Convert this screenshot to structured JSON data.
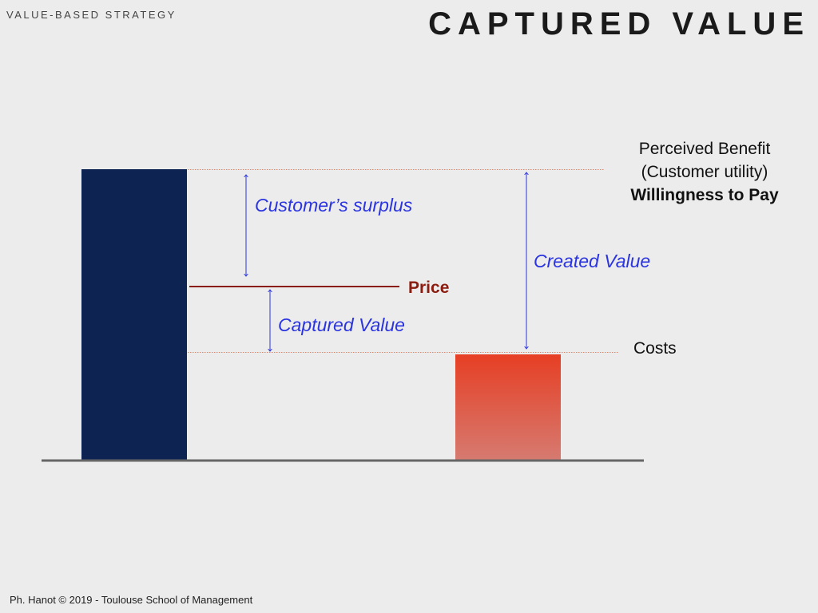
{
  "header": {
    "section": "VALUE-BASED STRATEGY",
    "title": "CAPTURED VALUE"
  },
  "diagram": {
    "benefit_line1": "Perceived Benefit",
    "benefit_line2": "(Customer utility)",
    "benefit_line3": "Willingness to Pay",
    "price_label": "Price",
    "costs_label": "Costs",
    "customer_surplus_label": "Customer’s surplus",
    "captured_value_label": "Captured Value",
    "created_value_label": "Created Value",
    "colors": {
      "benefit_bar": "#0d2352",
      "cost_bar_top": "#e63f24",
      "cost_bar_bottom": "#d67a70",
      "arrow": "#2a34e0",
      "price_line": "#8b1c10",
      "guide": "#d48a70",
      "baseline": "#666666"
    }
  },
  "footer": {
    "text": "Ph. Hanot © 2019  -  Toulouse School of Management"
  }
}
